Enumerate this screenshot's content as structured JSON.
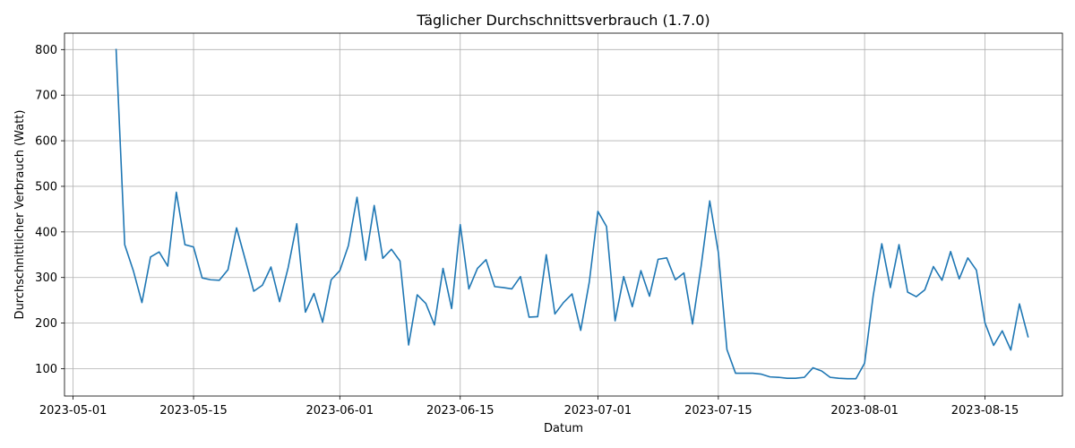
{
  "chart_data": {
    "type": "line",
    "title": "Täglicher Durchschnittsverbrauch (1.7.0)",
    "xlabel": "Datum",
    "ylabel": "Durchschnittlicher Verbrauch (Watt)",
    "x_ticks": [
      "2023-05-01",
      "2023-05-15",
      "2023-06-01",
      "2023-06-15",
      "2023-07-01",
      "2023-07-15",
      "2023-08-01",
      "2023-08-15"
    ],
    "y_ticks": [
      100,
      200,
      300,
      400,
      500,
      600,
      700,
      800
    ],
    "xlim": [
      "2023-04-30",
      "2023-08-24"
    ],
    "ylim": [
      40,
      836
    ],
    "grid": true,
    "color": "#1f77b4",
    "series": [
      {
        "x": [
          "2023-05-06",
          "2023-05-07",
          "2023-05-08",
          "2023-05-09",
          "2023-05-10",
          "2023-05-11",
          "2023-05-12",
          "2023-05-13",
          "2023-05-14",
          "2023-05-15",
          "2023-05-16",
          "2023-05-17",
          "2023-05-18",
          "2023-05-19",
          "2023-05-20",
          "2023-05-21",
          "2023-05-22",
          "2023-05-23",
          "2023-05-24",
          "2023-05-25",
          "2023-05-26",
          "2023-05-27",
          "2023-05-28",
          "2023-05-29",
          "2023-05-30",
          "2023-05-31",
          "2023-06-01",
          "2023-06-02",
          "2023-06-03",
          "2023-06-04",
          "2023-06-05",
          "2023-06-06",
          "2023-06-07",
          "2023-06-08",
          "2023-06-09",
          "2023-06-10",
          "2023-06-11",
          "2023-06-12",
          "2023-06-13",
          "2023-06-14",
          "2023-06-15",
          "2023-06-16",
          "2023-06-17",
          "2023-06-18",
          "2023-06-19",
          "2023-06-20",
          "2023-06-21",
          "2023-06-22",
          "2023-06-23",
          "2023-06-24",
          "2023-06-25",
          "2023-06-26",
          "2023-06-27",
          "2023-06-28",
          "2023-06-29",
          "2023-06-30",
          "2023-07-01",
          "2023-07-02",
          "2023-07-03",
          "2023-07-04",
          "2023-07-05",
          "2023-07-06",
          "2023-07-07",
          "2023-07-08",
          "2023-07-09",
          "2023-07-10",
          "2023-07-11",
          "2023-07-12",
          "2023-07-13",
          "2023-07-14",
          "2023-07-15",
          "2023-07-16",
          "2023-07-17",
          "2023-07-18",
          "2023-07-19",
          "2023-07-20",
          "2023-07-21",
          "2023-07-22",
          "2023-07-23",
          "2023-07-24",
          "2023-07-25",
          "2023-07-26",
          "2023-07-27",
          "2023-07-28",
          "2023-07-29",
          "2023-07-30",
          "2023-07-31",
          "2023-08-01",
          "2023-08-02",
          "2023-08-03",
          "2023-08-04",
          "2023-08-05",
          "2023-08-06",
          "2023-08-07",
          "2023-08-08",
          "2023-08-09",
          "2023-08-10",
          "2023-08-11",
          "2023-08-12",
          "2023-08-13",
          "2023-08-14",
          "2023-08-15",
          "2023-08-16",
          "2023-08-17",
          "2023-08-18",
          "2023-08-19",
          "2023-08-20"
        ],
        "values": [
          800,
          372,
          315,
          245,
          345,
          356,
          325,
          487,
          372,
          367,
          299,
          295,
          294,
          317,
          409,
          340,
          270,
          283,
          323,
          247,
          322,
          418,
          224,
          265,
          202,
          295,
          315,
          370,
          476,
          338,
          458,
          342,
          362,
          336,
          152,
          262,
          243,
          196,
          320,
          232,
          416,
          275,
          320,
          339,
          280,
          278,
          275,
          302,
          213,
          214,
          350,
          220,
          245,
          264,
          184,
          290,
          445,
          412,
          205,
          302,
          236,
          315,
          259,
          340,
          343,
          295,
          310,
          198,
          325,
          468,
          355,
          142,
          90,
          90,
          90,
          88,
          82,
          81,
          79,
          79,
          81,
          102,
          95,
          81,
          79,
          78,
          78,
          112,
          260,
          374,
          278,
          372,
          268,
          258,
          273,
          324,
          294,
          357,
          297,
          343,
          316,
          200,
          151,
          183,
          141,
          242,
          170
        ]
      }
    ]
  }
}
